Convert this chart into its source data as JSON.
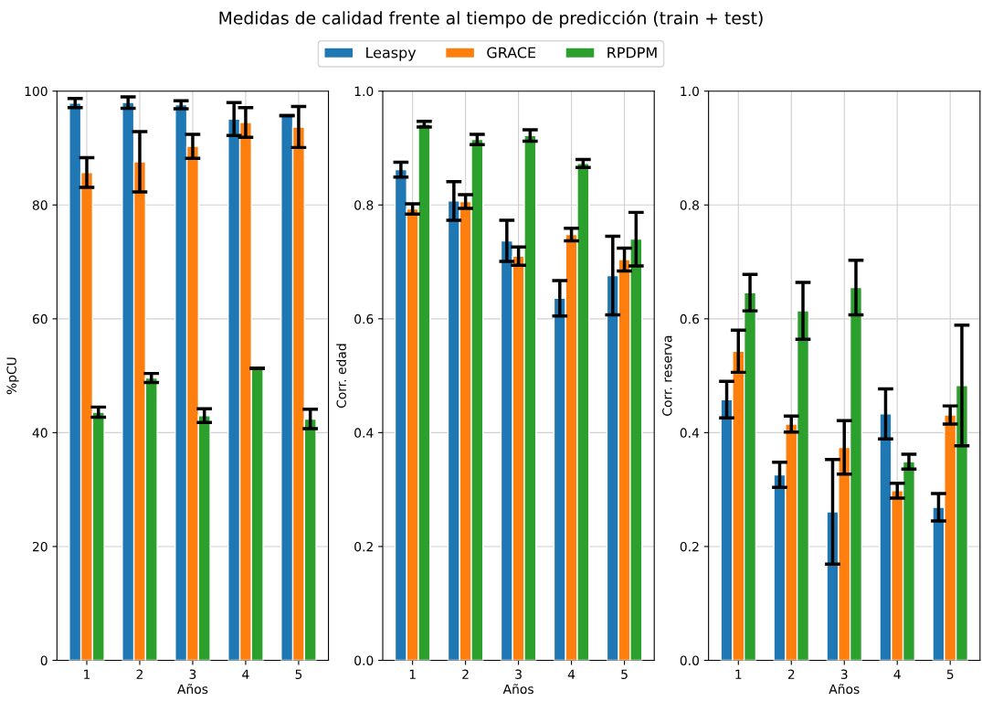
{
  "chart_data": [
    {
      "type": "bar",
      "title": "Medidas de calidad frente al tiempo de predicción (train + test)",
      "legend": "top",
      "grid": true,
      "xlabel": "Años",
      "ylabel": "%pCU",
      "categories": [
        "1",
        "2",
        "3",
        "4",
        "5"
      ],
      "ylim": [
        0,
        100
      ],
      "yticks": [
        0,
        20,
        40,
        60,
        80,
        100
      ],
      "series": [
        {
          "name": "Leaspy",
          "color": "#1f77b4",
          "values": [
            97.9,
            98.0,
            97.6,
            95.1,
            95.7
          ],
          "errors": [
            0.8,
            1.0,
            0.7,
            2.9,
            0
          ]
        },
        {
          "name": "GRACE",
          "color": "#ff7f0e",
          "values": [
            85.7,
            87.6,
            90.3,
            94.5,
            93.7
          ],
          "errors": [
            2.6,
            5.3,
            2.1,
            2.6,
            3.6
          ]
        },
        {
          "name": "RPDPM",
          "color": "#2ca02c",
          "values": [
            43.6,
            49.6,
            43.0,
            51.3,
            42.4
          ],
          "errors": [
            0.9,
            0.8,
            1.2,
            0,
            1.7
          ]
        }
      ]
    },
    {
      "type": "bar",
      "grid": true,
      "xlabel": "Años",
      "ylabel": "Corr. edad",
      "categories": [
        "1",
        "2",
        "3",
        "4",
        "5"
      ],
      "ylim": [
        0,
        1
      ],
      "yticks": [
        {
          "value": 0,
          "label": "0.0"
        },
        {
          "value": 0.2,
          "label": "0.2"
        },
        {
          "value": 0.4,
          "label": "0.4"
        },
        {
          "value": 0.6,
          "label": "0.6"
        },
        {
          "value": 0.8,
          "label": "0.8"
        },
        {
          "value": 1,
          "label": "1.0"
        }
      ],
      "series": [
        {
          "color": "#1f77b4",
          "values": [
            0.862,
            0.807,
            0.737,
            0.636,
            0.676
          ],
          "errors": [
            0.013,
            0.034,
            0.036,
            0.031,
            0.069
          ]
        },
        {
          "color": "#ff7f0e",
          "values": [
            0.793,
            0.806,
            0.71,
            0.748,
            0.704
          ],
          "errors": [
            0.009,
            0.012,
            0.016,
            0.011,
            0.02
          ]
        },
        {
          "color": "#2ca02c",
          "values": [
            0.942,
            0.915,
            0.922,
            0.873,
            0.74
          ],
          "errors": [
            0.005,
            0.009,
            0.01,
            0.007,
            0.047
          ]
        }
      ]
    },
    {
      "type": "bar",
      "grid": true,
      "xlabel": "Años",
      "ylabel": "Corr. reserva",
      "categories": [
        "1",
        "2",
        "3",
        "4",
        "5"
      ],
      "ylim": [
        0,
        1
      ],
      "yticks": [
        {
          "value": 0,
          "label": "0.0"
        },
        {
          "value": 0.2,
          "label": "0.2"
        },
        {
          "value": 0.4,
          "label": "0.4"
        },
        {
          "value": 0.6,
          "label": "0.6"
        },
        {
          "value": 0.8,
          "label": "0.8"
        },
        {
          "value": 1,
          "label": "1.0"
        }
      ],
      "series": [
        {
          "color": "#1f77b4",
          "values": [
            0.458,
            0.326,
            0.261,
            0.433,
            0.269
          ],
          "errors": [
            0.032,
            0.022,
            0.092,
            0.044,
            0.024
          ]
        },
        {
          "color": "#ff7f0e",
          "values": [
            0.543,
            0.415,
            0.374,
            0.298,
            0.431
          ],
          "errors": [
            0.037,
            0.014,
            0.047,
            0.013,
            0.016
          ]
        },
        {
          "color": "#2ca02c",
          "values": [
            0.646,
            0.614,
            0.655,
            0.349,
            0.483
          ],
          "errors": [
            0.032,
            0.05,
            0.048,
            0.013,
            0.106
          ]
        }
      ]
    }
  ]
}
